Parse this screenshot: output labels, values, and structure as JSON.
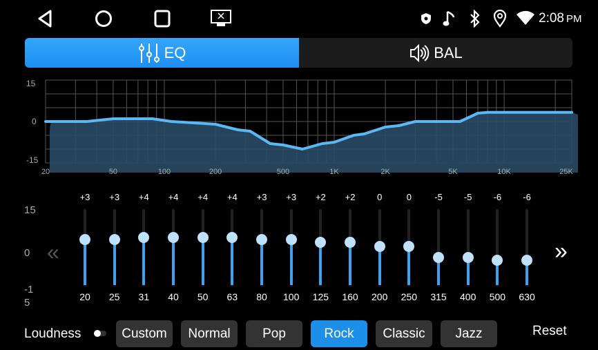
{
  "status_bar": {
    "time": "2:08",
    "ampm": "PM",
    "icons": [
      "shield-icon",
      "music-note-icon",
      "bluetooth-icon",
      "location-icon",
      "wifi-icon"
    ]
  },
  "nav_bar": {
    "icons": [
      "back-icon",
      "home-icon",
      "recents-icon",
      "screen-off-icon"
    ]
  },
  "tabs": [
    {
      "label": "EQ",
      "icon": "equalizer-icon",
      "active": true
    },
    {
      "label": "BAL",
      "icon": "speaker-icon",
      "active": false
    }
  ],
  "colors": {
    "accent": "#1e8fe8",
    "curve": "#5ab8f5",
    "fill": "#2a4a66"
  },
  "graph": {
    "y_ticks": [
      "15",
      "0",
      "-15"
    ],
    "x_ticks": [
      "20",
      "50",
      "100",
      "200",
      "500",
      "1K",
      "2K",
      "5K",
      "10K",
      "25K"
    ],
    "curve": [
      [
        20,
        0
      ],
      [
        35,
        0
      ],
      [
        50,
        1
      ],
      [
        85,
        1
      ],
      [
        110,
        0
      ],
      [
        150,
        -0.5
      ],
      [
        200,
        -1
      ],
      [
        270,
        -3
      ],
      [
        320,
        -3.5
      ],
      [
        420,
        -8
      ],
      [
        500,
        -8.5
      ],
      [
        650,
        -10
      ],
      [
        850,
        -8
      ],
      [
        1000,
        -7.5
      ],
      [
        1300,
        -5
      ],
      [
        1500,
        -4.5
      ],
      [
        2000,
        -2
      ],
      [
        2400,
        -1.5
      ],
      [
        3000,
        0
      ],
      [
        5500,
        0
      ],
      [
        7000,
        3
      ],
      [
        8000,
        3.3
      ],
      [
        25000,
        3.3
      ]
    ]
  },
  "sliders": {
    "axis": {
      "top": "15",
      "mid": "0",
      "bottom_line1": "-1",
      "bottom_line2": "5"
    },
    "bands": [
      {
        "freq": "20",
        "gain": "+3",
        "value": 3
      },
      {
        "freq": "25",
        "gain": "+3",
        "value": 3
      },
      {
        "freq": "31",
        "gain": "+4",
        "value": 4
      },
      {
        "freq": "40",
        "gain": "+4",
        "value": 4
      },
      {
        "freq": "50",
        "gain": "+4",
        "value": 4
      },
      {
        "freq": "63",
        "gain": "+4",
        "value": 4
      },
      {
        "freq": "80",
        "gain": "+3",
        "value": 3
      },
      {
        "freq": "100",
        "gain": "+3",
        "value": 3
      },
      {
        "freq": "125",
        "gain": "+2",
        "value": 2
      },
      {
        "freq": "160",
        "gain": "+2",
        "value": 2
      },
      {
        "freq": "200",
        "gain": "0",
        "value": 0
      },
      {
        "freq": "250",
        "gain": "0",
        "value": 0
      },
      {
        "freq": "315",
        "gain": "-5",
        "value": -5
      },
      {
        "freq": "400",
        "gain": "-5",
        "value": -5
      },
      {
        "freq": "500",
        "gain": "-6",
        "value": -6
      },
      {
        "freq": "630",
        "gain": "-6",
        "value": -6
      }
    ],
    "prev": "«",
    "next": "»"
  },
  "footer": {
    "loudness_label": "Loudness",
    "loudness_on": false,
    "presets": [
      "Custom",
      "Normal",
      "Pop",
      "Rock",
      "Classic",
      "Jazz"
    ],
    "active_preset": "Rock",
    "reset_label": "Reset"
  }
}
